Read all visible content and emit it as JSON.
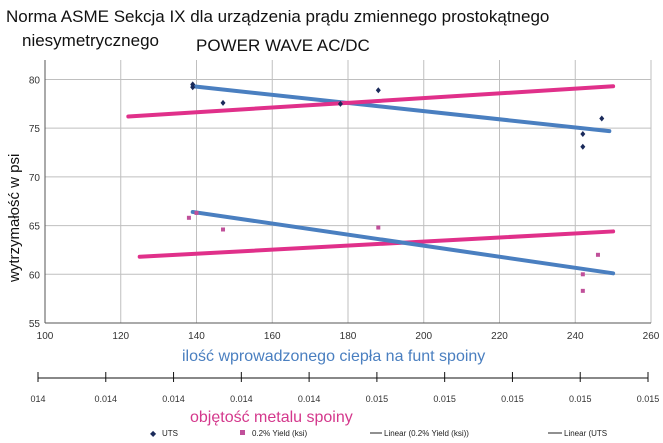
{
  "title": {
    "line1": "Norma ASME Sekcja IX dla urządzenia prądu   zmiennego prostokątnego",
    "line2a": "niesymetrycznego",
    "line2b": "POWER WAVE AC/DC"
  },
  "colors": {
    "uts": "#4a7fc0",
    "yield": "#e0308a",
    "uts_points": "#1a2a5a",
    "yield_points": "#c0509a",
    "grid": "#bfbfbf"
  },
  "chart_data": {
    "type": "scatter",
    "xlabel": "ilość wprowadzonego ciepła na funt spoiny",
    "xlabel2": "objętość metalu spoiny",
    "ylabel": "wytrzymałość w psi",
    "xlim": [
      100,
      260
    ],
    "ylim": [
      55,
      82
    ],
    "x_ticks": [
      100,
      120,
      140,
      160,
      180,
      200,
      220,
      240,
      260
    ],
    "y_ticks": [
      55,
      60,
      65,
      70,
      75,
      80
    ],
    "x2_ticks": [
      "014",
      "0.014",
      "0.014",
      "0.014",
      "0.014",
      "0.015",
      "0.015",
      "0.015",
      "0.015",
      "0.015"
    ],
    "grid": true,
    "series": [
      {
        "name": "UTS",
        "kind": "points",
        "x": [
          139,
          139,
          147,
          178,
          188,
          242,
          242,
          247
        ],
        "y": [
          79.5,
          79.2,
          77.6,
          77.5,
          78.9,
          74.4,
          73.1,
          76.0
        ]
      },
      {
        "name": "0.2% Yield (ksi)",
        "kind": "points",
        "x": [
          138,
          140,
          147,
          188,
          242,
          242,
          246
        ],
        "y": [
          65.8,
          66.3,
          64.6,
          64.8,
          60.0,
          58.3,
          62.0
        ]
      },
      {
        "name": "Linear (0.2% Yield (ksi))",
        "kind": "line",
        "x": [
          125,
          250
        ],
        "y": [
          61.8,
          64.4
        ]
      },
      {
        "name": "Linear (UTS",
        "kind": "line",
        "x": [
          139,
          249
        ],
        "y": [
          79.3,
          74.7
        ]
      },
      {
        "name": "",
        "kind": "line",
        "x": [
          122,
          250
        ],
        "y": [
          76.2,
          79.3
        ]
      },
      {
        "name": "",
        "kind": "line",
        "x": [
          139,
          250
        ],
        "y": [
          66.4,
          60.1
        ]
      }
    ],
    "legend_position": "bottom",
    "legend": [
      "UTS",
      "0.2% Yield (ksi)",
      "Linear (0.2% Yield (ksi))",
      "Linear (UTS"
    ]
  }
}
